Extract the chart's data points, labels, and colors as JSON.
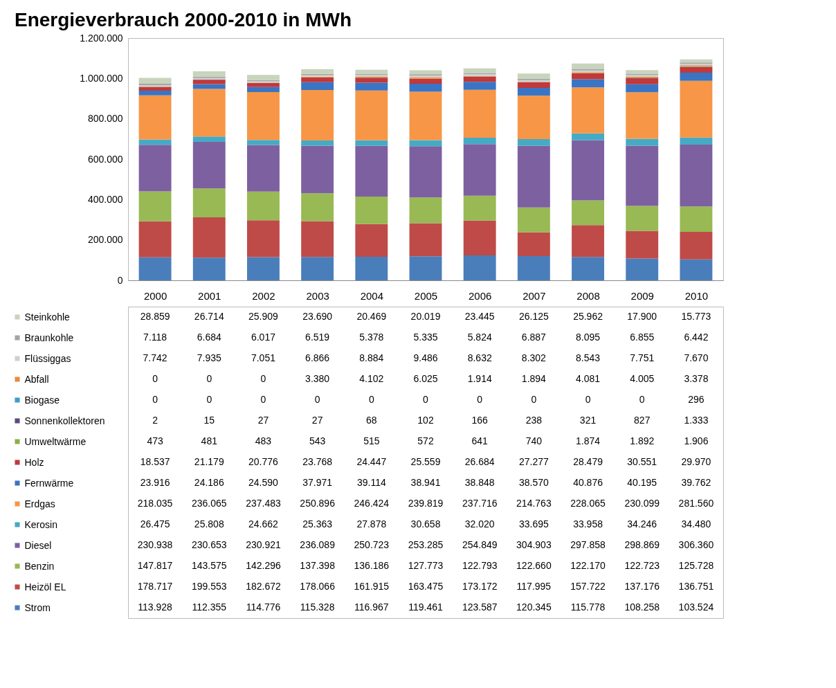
{
  "chart_data": {
    "type": "bar",
    "title": "Energieverbrauch 2000-2010 in MWh",
    "stacked": true,
    "legend": "bottom left",
    "categories": [
      "2000",
      "2001",
      "2002",
      "2003",
      "2004",
      "2005",
      "2006",
      "2007",
      "2008",
      "2009",
      "2010"
    ],
    "ylim": [
      0,
      1200000
    ],
    "yticks": [
      {
        "value": 0,
        "label": "0"
      },
      {
        "value": 200000,
        "label": "200.000"
      },
      {
        "value": 400000,
        "label": "400.000"
      },
      {
        "value": 600000,
        "label": "600.000"
      },
      {
        "value": 800000,
        "label": "800.000"
      },
      {
        "value": 1000000,
        "label": "1.000.000"
      },
      {
        "value": 1200000,
        "label": "1.200.000"
      }
    ],
    "series": [
      {
        "name": "Strom",
        "color": "#4a7ebb",
        "values": [
          113928,
          112355,
          114776,
          115328,
          116967,
          119461,
          123587,
          120345,
          115778,
          108258,
          103524
        ],
        "value_labels": [
          "113.928",
          "112.355",
          "114.776",
          "115.328",
          "116.967",
          "119.461",
          "123.587",
          "120.345",
          "115.778",
          "108.258",
          "103.524"
        ]
      },
      {
        "name": "Heizöl EL",
        "color": "#be4b48",
        "values": [
          178717,
          199553,
          182672,
          178066,
          161915,
          163475,
          173172,
          117995,
          157722,
          137176,
          136751
        ],
        "value_labels": [
          "178.717",
          "199.553",
          "182.672",
          "178.066",
          "161.915",
          "163.475",
          "173.172",
          "117.995",
          "157.722",
          "137.176",
          "136.751"
        ]
      },
      {
        "name": "Benzin",
        "color": "#98b954",
        "values": [
          147817,
          143575,
          142296,
          137398,
          136186,
          127773,
          122793,
          122660,
          122170,
          122723,
          125728
        ],
        "value_labels": [
          "147.817",
          "143.575",
          "142.296",
          "137.398",
          "136.186",
          "127.773",
          "122.793",
          "122.660",
          "122.170",
          "122.723",
          "125.728"
        ]
      },
      {
        "name": "Diesel",
        "color": "#7d60a0",
        "values": [
          230938,
          230653,
          230921,
          236089,
          250723,
          253285,
          254849,
          304903,
          297858,
          298869,
          306360
        ],
        "value_labels": [
          "230.938",
          "230.653",
          "230.921",
          "236.089",
          "250.723",
          "253.285",
          "254.849",
          "304.903",
          "297.858",
          "298.869",
          "306.360"
        ]
      },
      {
        "name": "Kerosin",
        "color": "#46aac5",
        "values": [
          26475,
          25808,
          24662,
          25363,
          27878,
          30658,
          32020,
          33695,
          33958,
          34246,
          34480
        ],
        "value_labels": [
          "26.475",
          "25.808",
          "24.662",
          "25.363",
          "27.878",
          "30.658",
          "32.020",
          "33.695",
          "33.958",
          "34.246",
          "34.480"
        ]
      },
      {
        "name": "Erdgas",
        "color": "#f79646",
        "values": [
          218035,
          236065,
          237483,
          250896,
          246424,
          239819,
          237716,
          214763,
          228065,
          230099,
          281560
        ],
        "value_labels": [
          "218.035",
          "236.065",
          "237.483",
          "250.896",
          "246.424",
          "239.819",
          "237.716",
          "214.763",
          "228.065",
          "230.099",
          "281.560"
        ]
      },
      {
        "name": "Fernwärme",
        "color": "#3a74c4",
        "values": [
          23916,
          24186,
          24590,
          37971,
          39114,
          38941,
          38848,
          38570,
          40876,
          40195,
          39762
        ],
        "value_labels": [
          "23.916",
          "24.186",
          "24.590",
          "37.971",
          "39.114",
          "38.941",
          "38.848",
          "38.570",
          "40.876",
          "40.195",
          "39.762"
        ]
      },
      {
        "name": "Holz",
        "color": "#c0393b",
        "values": [
          18537,
          21179,
          20776,
          23768,
          24447,
          25559,
          26684,
          27277,
          28479,
          30551,
          29970
        ],
        "value_labels": [
          "18.537",
          "21.179",
          "20.776",
          "23.768",
          "24.447",
          "25.559",
          "26.684",
          "27.277",
          "28.479",
          "30.551",
          "29.970"
        ]
      },
      {
        "name": "Umweltwärme",
        "color": "#8cb04a",
        "values": [
          473,
          481,
          483,
          543,
          515,
          572,
          641,
          740,
          1874,
          1892,
          1906
        ],
        "value_labels": [
          "473",
          "481",
          "483",
          "543",
          "515",
          "572",
          "641",
          "740",
          "1.874",
          "1.892",
          "1.906"
        ]
      },
      {
        "name": "Sonnenkollektoren",
        "color": "#5c4a7a",
        "values": [
          2,
          15,
          27,
          27,
          68,
          102,
          166,
          238,
          321,
          827,
          1333
        ],
        "value_labels": [
          "2",
          "15",
          "27",
          "27",
          "68",
          "102",
          "166",
          "238",
          "321",
          "827",
          "1.333"
        ]
      },
      {
        "name": "Biogase",
        "color": "#3c9ec8",
        "values": [
          0,
          0,
          0,
          0,
          0,
          0,
          0,
          0,
          0,
          0,
          296
        ],
        "value_labels": [
          "0",
          "0",
          "0",
          "0",
          "0",
          "0",
          "0",
          "0",
          "0",
          "0",
          "296"
        ]
      },
      {
        "name": "Abfall",
        "color": "#ee8a3c",
        "values": [
          0,
          0,
          0,
          3380,
          4102,
          6025,
          1914,
          1894,
          4081,
          4005,
          3378
        ],
        "value_labels": [
          "0",
          "0",
          "0",
          "3.380",
          "4.102",
          "6.025",
          "1.914",
          "1.894",
          "4.081",
          "4.005",
          "3.378"
        ]
      },
      {
        "name": "Flüssiggas",
        "color": "#d0d0d0",
        "values": [
          7742,
          7935,
          7051,
          6866,
          8884,
          9486,
          8632,
          8302,
          8543,
          7751,
          7670
        ],
        "value_labels": [
          "7.742",
          "7.935",
          "7.051",
          "6.866",
          "8.884",
          "9.486",
          "8.632",
          "8.302",
          "8.543",
          "7.751",
          "7.670"
        ]
      },
      {
        "name": "Braunkohle",
        "color": "#a5a5a5",
        "values": [
          7118,
          6684,
          6017,
          6519,
          5378,
          5335,
          5824,
          6887,
          8095,
          6855,
          6442
        ],
        "value_labels": [
          "7.118",
          "6.684",
          "6.017",
          "6.519",
          "5.378",
          "5.335",
          "5.824",
          "6.887",
          "8.095",
          "6.855",
          "6.442"
        ]
      },
      {
        "name": "Steinkohle",
        "color": "#c8d4bc",
        "values": [
          28859,
          26714,
          25909,
          23690,
          20469,
          20019,
          23445,
          26125,
          25962,
          17900,
          15773
        ],
        "value_labels": [
          "28.859",
          "26.714",
          "25.909",
          "23.690",
          "20.469",
          "20.019",
          "23.445",
          "26.125",
          "25.962",
          "17.900",
          "15.773"
        ]
      }
    ]
  }
}
